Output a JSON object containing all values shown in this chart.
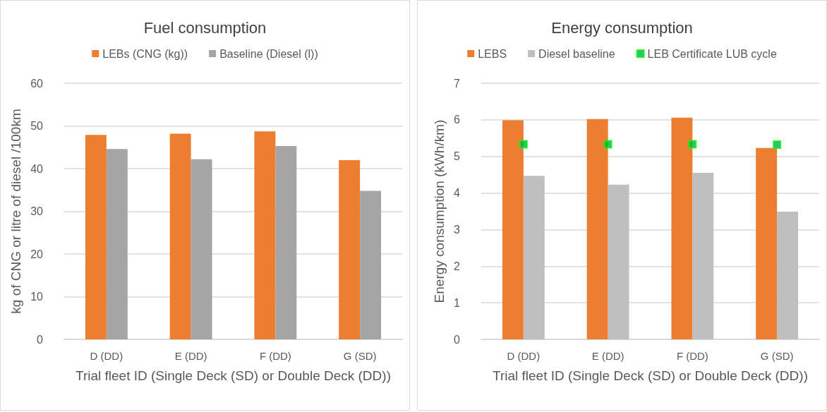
{
  "chart_data": [
    {
      "type": "bar",
      "title": "Fuel consumption",
      "xlabel": "Trial fleet ID (Single Deck (SD) or Double Deck (DD))",
      "ylabel": "kg of CNG or litre of diesel /100km",
      "categories": [
        "D (DD)",
        "E (DD)",
        "F (DD)",
        "G (SD)"
      ],
      "series": [
        {
          "name": "LEBs (CNG (kg))",
          "color": "#ed7d31",
          "values": [
            47.9,
            48.2,
            48.7,
            42.0
          ]
        },
        {
          "name": "Baseline (Diesel (l))",
          "color": "#a5a5a5",
          "values": [
            44.6,
            42.2,
            45.3,
            34.8
          ]
        }
      ],
      "ylim": [
        0,
        60
      ],
      "yticks": [
        0,
        10,
        20,
        30,
        40,
        50,
        60
      ],
      "grid": "y",
      "legend": "top"
    },
    {
      "type": "bar",
      "title": "Energy consumption",
      "xlabel": "Trial fleet ID (Single Deck (SD) or Double Deck (DD))",
      "ylabel": "Energy consumption (kWh/km)",
      "categories": [
        "D (DD)",
        "E (DD)",
        "F (DD)",
        "G (SD)"
      ],
      "series": [
        {
          "name": "LEBS",
          "color": "#ed7d31",
          "values": [
            5.99,
            6.02,
            6.06,
            5.23
          ]
        },
        {
          "name": "Diesel baseline",
          "color": "#bfbfbf",
          "values": [
            4.47,
            4.23,
            4.55,
            3.49
          ]
        },
        {
          "name": "LEB Certificate LUB cycle",
          "type": "scatter",
          "color": "#00b050",
          "x": [
            "D (DD)",
            "E (DD)",
            "F (DD)",
            "G (SD)"
          ],
          "values": [
            5.33,
            5.33,
            5.33,
            5.32
          ]
        }
      ],
      "ylim": [
        0,
        7
      ],
      "yticks": [
        0,
        1,
        2,
        3,
        4,
        5,
        6,
        7
      ],
      "grid": "y",
      "legend": "top",
      "marker": "square"
    }
  ]
}
